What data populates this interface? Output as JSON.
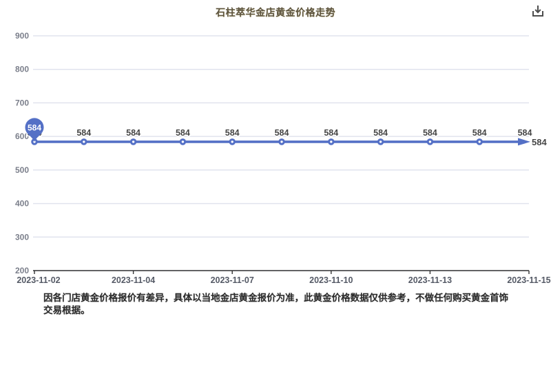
{
  "header": {
    "title": "石柱萃华金店黄金价格走势",
    "title_color": "#5d5440"
  },
  "toolbox": {
    "save_icon": "download-icon",
    "icon_color": "#4d4d4d"
  },
  "chart_data": {
    "type": "line",
    "title": "石柱萃华金店黄金价格走势",
    "x_tick_labels": [
      "2023-11-02",
      "2023-11-04",
      "2023-11-07",
      "2023-11-10",
      "2023-11-13",
      "2023-11-15"
    ],
    "values": [
      584,
      584,
      584,
      584,
      584,
      584,
      584,
      584,
      584,
      584,
      584
    ],
    "point_label": "584",
    "balloon_label": "584",
    "end_label": "584",
    "ylabel": "",
    "xlabel": "",
    "ylim": [
      200,
      900
    ],
    "y_ticks": [
      900,
      800,
      700,
      600,
      500,
      400,
      300,
      200
    ],
    "grid": true,
    "legend": "none",
    "colors": {
      "line": "#5470c6",
      "marker_fill": "#5470c6",
      "marker_dot": "#ffffff",
      "balloon": "#5470c6",
      "grid_line": "#e0e3ee",
      "axis_line": "#333333",
      "y_tick_label": "#7b7f8b",
      "x_tick_label": "#555a66",
      "point_label": "#464646",
      "point_label_halo": "#ffffff"
    }
  },
  "footer": {
    "disclaimer": "因各门店黄金价格报价有差异，具体以当地金店黄金报价为准，此黄金价格数据仅供参考，不做任何购买黄金首饰交易根据。"
  }
}
